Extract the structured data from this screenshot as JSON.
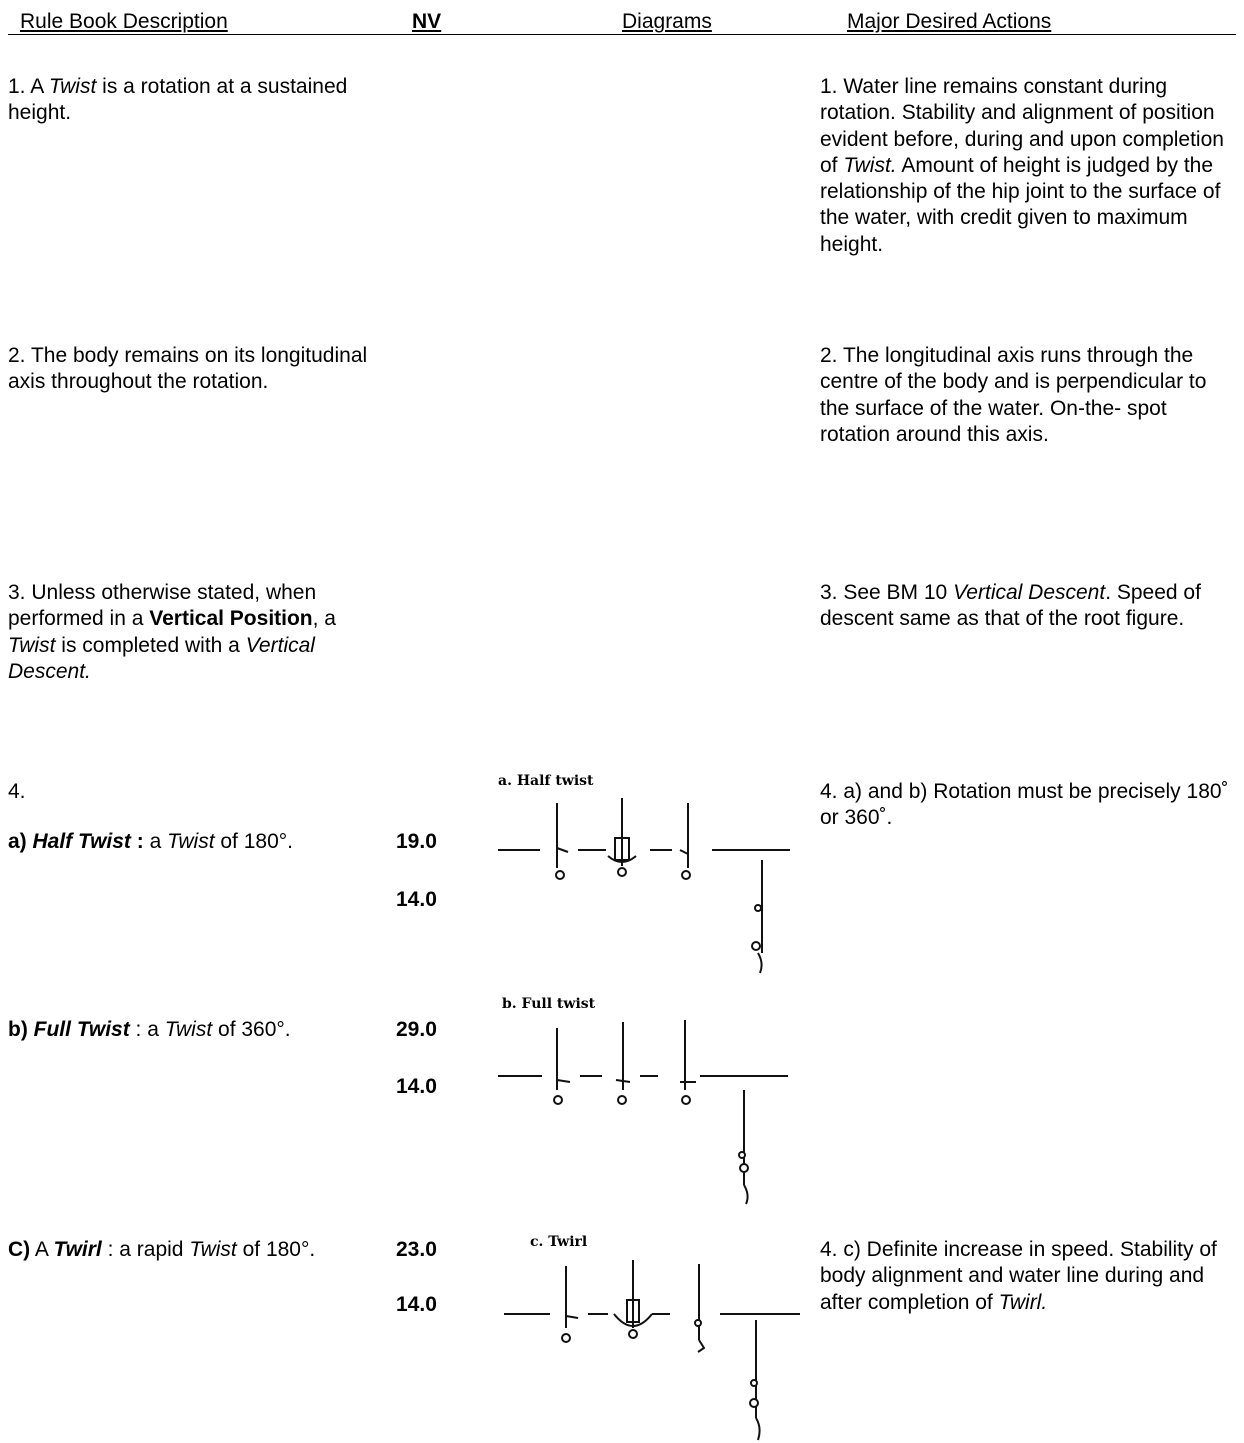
{
  "header": {
    "description": "Rule Book Description",
    "nv": "NV",
    "diagrams": "Diagrams",
    "actions": "Major Desired Actions"
  },
  "rows": [
    {
      "description": [
        "1. A ",
        "Twist",
        " is a rotation at a sustained height."
      ],
      "actions": [
        "1. Water line remains constant during rotation.  Stability and alignment of position evident before, during and upon completion of ",
        "Twist.",
        " Amount of height is judged by the relationship of the hip joint to the surface of the water, with credit given to maximum height."
      ]
    },
    {
      "description": [
        "2.  The body remains on its longitudinal axis throughout the rotation."
      ],
      "actions": [
        "2. The longitudinal axis runs through the centre of the body and is perpendicular to the surface of the water. On-the- spot rotation around this axis."
      ]
    },
    {
      "description": [
        "3.  Unless otherwise stated, when performed in a ",
        "Vertical Position",
        ", a ",
        "Twist",
        " is completed with a ",
        "Vertical Descent."
      ],
      "actions": [
        "3.  See BM 10 ",
        "Vertical Descent",
        ". Speed of descent same as that of the root figure."
      ]
    },
    {
      "number": "4.",
      "description": [
        "a) ",
        "Half Twist",
        " :",
        " a ",
        "Twist",
        " of 180°."
      ],
      "nv": [
        "19.0",
        "14.0"
      ],
      "diagram": "a. Half twist",
      "actions": [
        "4. a) and b) Rotation must be precisely 180˚ or 360˚."
      ]
    },
    {
      "description": [
        "b) ",
        "Full Twist",
        " : a ",
        "Twist",
        " of 360°."
      ],
      "nv": [
        "29.0",
        "14.0"
      ],
      "diagram": "b. Full twist"
    },
    {
      "description": [
        "C)",
        " A ",
        "Twirl",
        " : a rapid ",
        "Twist",
        " of 180°."
      ],
      "nv": [
        "23.0",
        "14.0"
      ],
      "diagram": "c. Twirl",
      "actions": [
        "4. c)  Definite increase in speed. Stability of body alignment and water line during and after completion of ",
        "Twirl."
      ]
    }
  ]
}
